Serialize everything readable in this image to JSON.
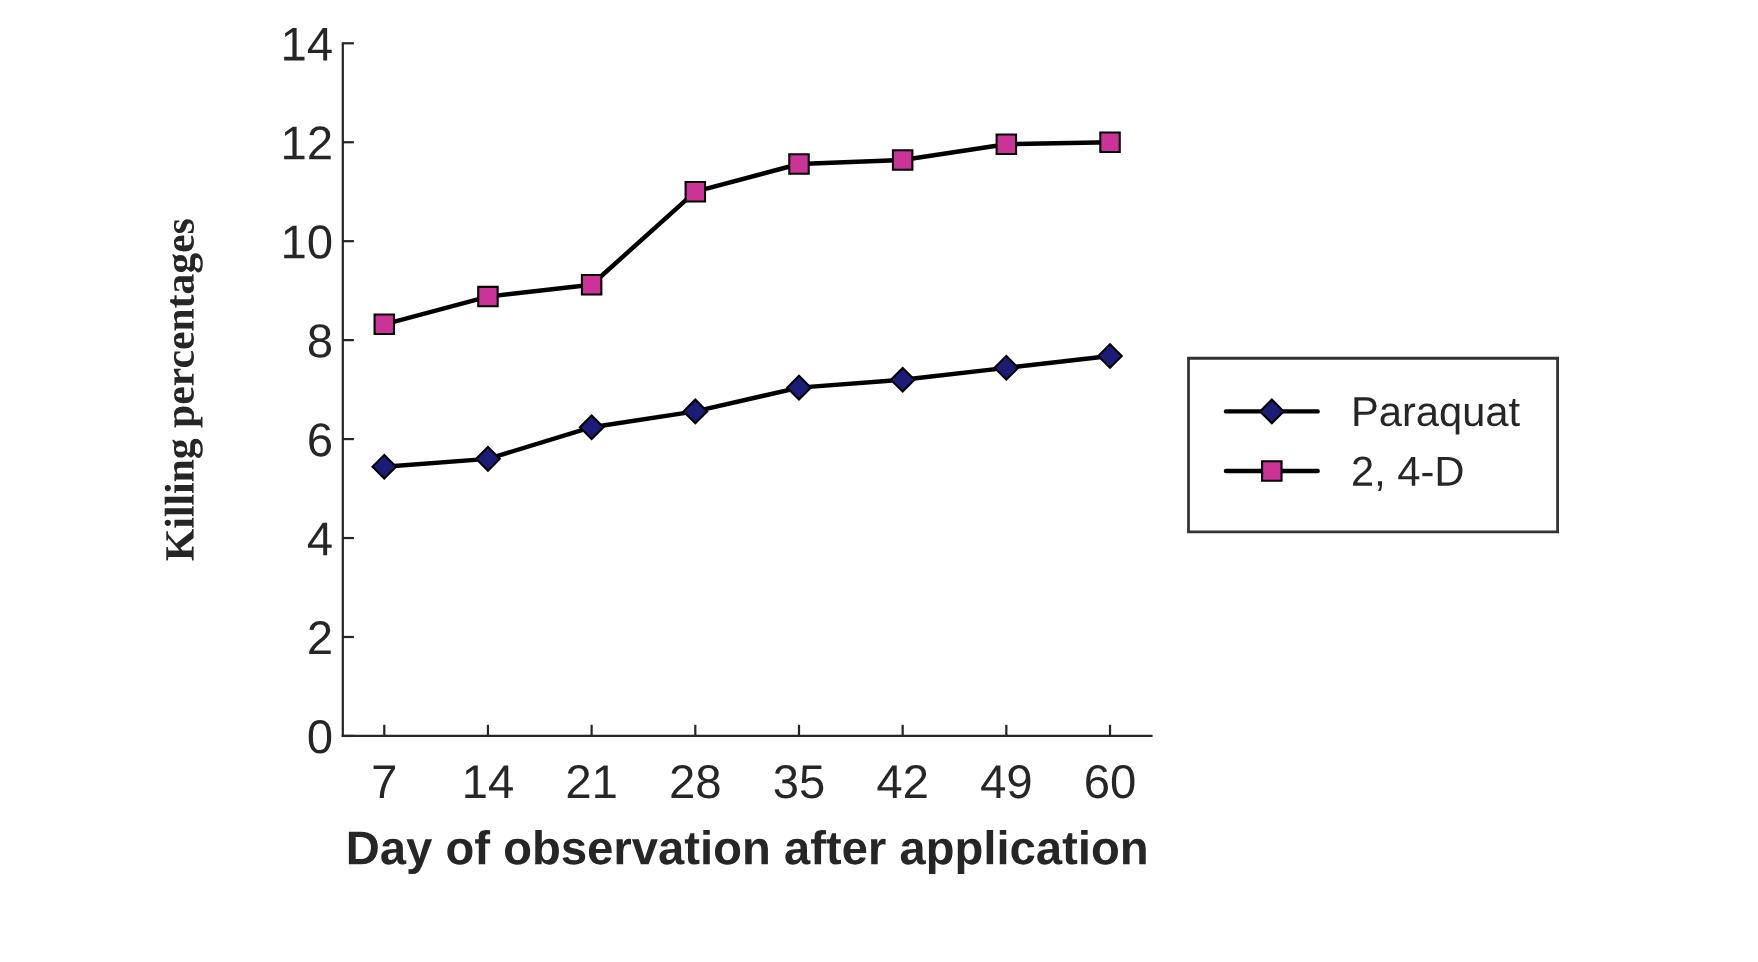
{
  "chart_data": {
    "type": "line",
    "xlabel": "Day of observation after application",
    "ylabel": "Killing percentages",
    "categories": [
      "7",
      "14",
      "21",
      "28",
      "35",
      "42",
      "49",
      "60"
    ],
    "series": [
      {
        "name": "Paraquat",
        "color": "#1c1c78",
        "marker": "diamond",
        "values": [
          5.44,
          5.6,
          6.24,
          6.56,
          7.04,
          7.2,
          7.44,
          7.68
        ]
      },
      {
        "name": "2, 4-D",
        "color": "#cc3399",
        "marker": "square",
        "values": [
          8.32,
          8.88,
          9.12,
          11.0,
          11.56,
          11.64,
          11.96,
          12.0
        ]
      }
    ],
    "ylim": [
      0,
      14
    ],
    "yticks": [
      0,
      2,
      4,
      6,
      8,
      10,
      12,
      14
    ],
    "grid": false,
    "legend": "right",
    "line_style": "solid"
  }
}
